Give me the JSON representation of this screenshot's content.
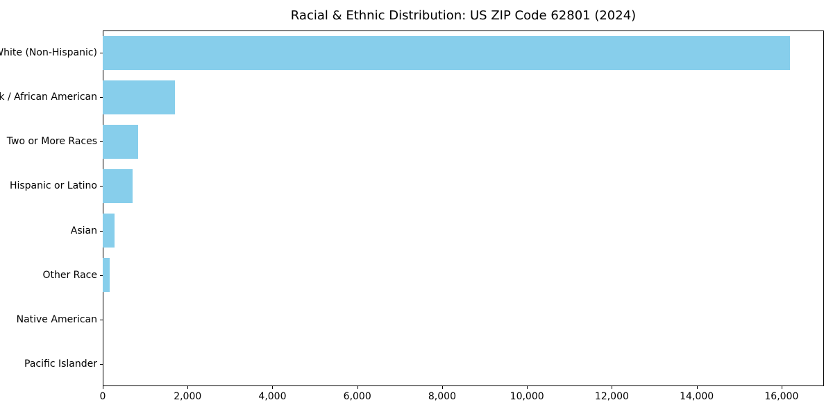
{
  "chart_data": {
    "type": "bar",
    "orientation": "horizontal",
    "title": "Racial & Ethnic Distribution: US ZIP Code 62801 (2024)",
    "categories": [
      "White (Non-Hispanic)",
      "Black / African American",
      "Two or More Races",
      "Hispanic or Latino",
      "Asian",
      "Other Race",
      "Native American",
      "Pacific Islander"
    ],
    "values": [
      16200,
      1700,
      840,
      700,
      280,
      160,
      0,
      0
    ],
    "xlabel": "",
    "ylabel": "",
    "xlim": [
      0,
      17000
    ],
    "xticks": [
      0,
      2000,
      4000,
      6000,
      8000,
      10000,
      12000,
      14000,
      16000
    ],
    "xtick_labels": [
      "0",
      "2,000",
      "4,000",
      "6,000",
      "8,000",
      "10,000",
      "12,000",
      "14,000",
      "16,000"
    ],
    "bar_color": "#87CEEB",
    "grid": false,
    "legend": null
  }
}
